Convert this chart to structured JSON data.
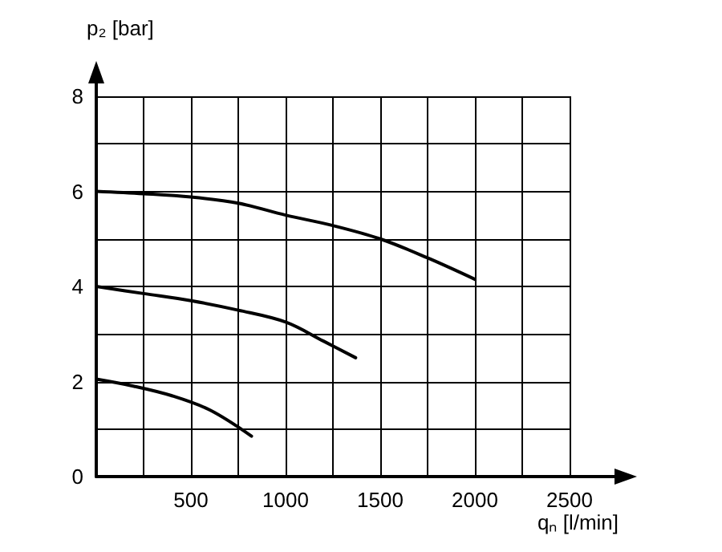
{
  "chart_data": {
    "type": "line",
    "xlabel": "qₙ [l/min]",
    "ylabel": "p₂ [bar]",
    "xlim": [
      0,
      2500
    ],
    "ylim": [
      0,
      8
    ],
    "xticks": [
      {
        "value": 0,
        "label": null
      },
      500,
      1000,
      1500,
      2000,
      2500
    ],
    "yticks": [
      0,
      2,
      4,
      6,
      8
    ],
    "grid": true,
    "marker": "none",
    "line_style": "solid",
    "series": [
      {
        "color": "#000000",
        "x": [
          0,
          250,
          500,
          750,
          1000,
          1250,
          1500,
          1750,
          2000
        ],
        "values": [
          6,
          5.95,
          5.88,
          5.75,
          5.5,
          5.28,
          5.0,
          4.6,
          4.15
        ]
      },
      {
        "color": "#000000",
        "x": [
          0,
          250,
          500,
          750,
          1000,
          1200,
          1370
        ],
        "values": [
          4,
          3.85,
          3.7,
          3.5,
          3.25,
          2.85,
          2.5
        ]
      },
      {
        "color": "#000000",
        "x": [
          0,
          200,
          400,
          600,
          820
        ],
        "values": [
          2.05,
          1.9,
          1.7,
          1.4,
          0.85
        ]
      }
    ]
  }
}
